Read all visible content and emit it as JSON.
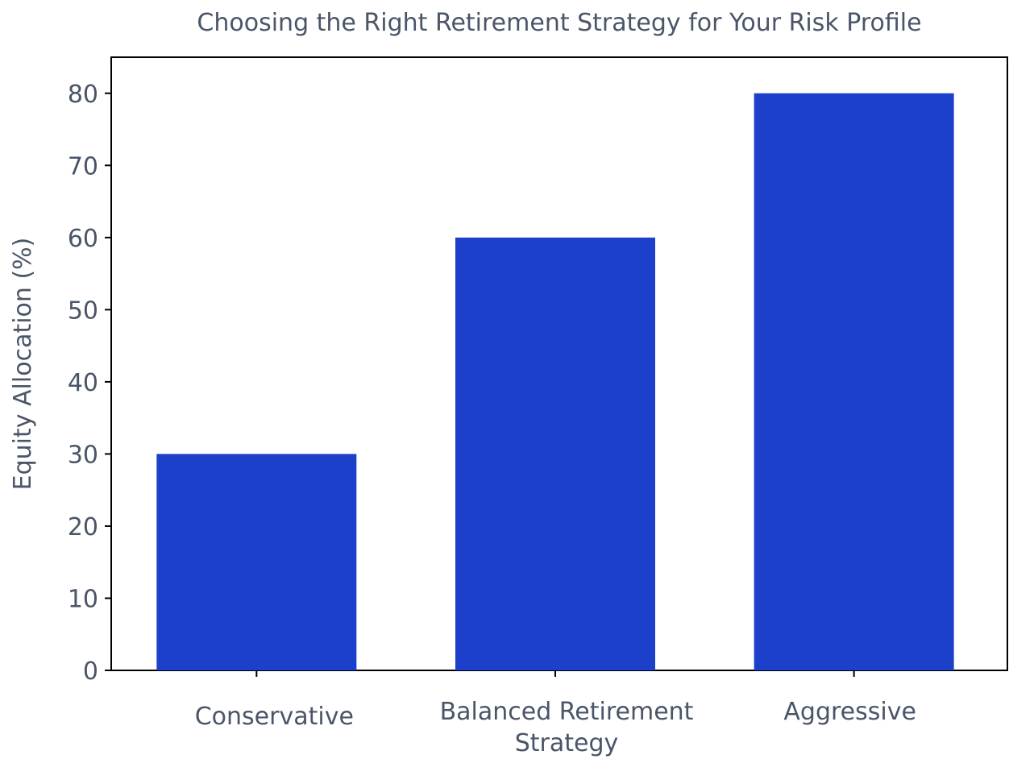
{
  "chart_data": {
    "type": "bar",
    "title": "Choosing the Right Retirement Strategy for Your Risk Profile",
    "xlabel": "",
    "ylabel": "Equity Allocation (%)",
    "categories": [
      "Conservative",
      "Balanced Retirement Strategy",
      "Aggressive"
    ],
    "category_label_lines": [
      [
        "Conservative"
      ],
      [
        "Balanced Retirement",
        "Strategy"
      ],
      [
        "Aggressive"
      ]
    ],
    "values": [
      30,
      60,
      80
    ],
    "ylim": [
      0,
      85
    ],
    "yticks": [
      0,
      10,
      20,
      30,
      40,
      50,
      60,
      70,
      80
    ],
    "bar_color": "#1c40c9",
    "grid": false,
    "legend": "none"
  }
}
